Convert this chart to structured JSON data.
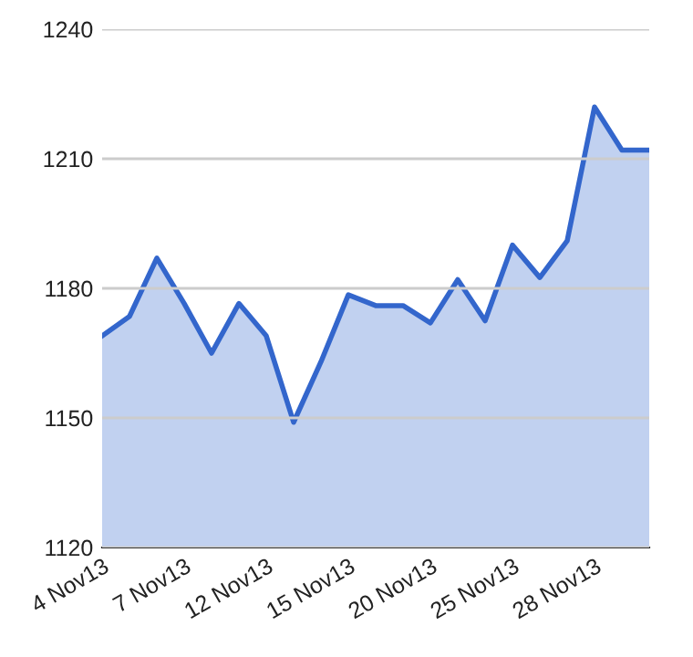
{
  "chart_data": {
    "type": "area",
    "categories": [
      "4 Nov13",
      null,
      null,
      "7 Nov13",
      null,
      null,
      "12 Nov13",
      null,
      null,
      "15 Nov13",
      null,
      null,
      "20 Nov13",
      null,
      null,
      "25 Nov13",
      null,
      null,
      "28 Nov13",
      null,
      null
    ],
    "series": [
      {
        "color": "#3366cc",
        "values": [
          1169,
          1173.5,
          1187,
          1176.5,
          1165,
          1176.5,
          1169,
          1149,
          1163,
          1178.5,
          1176,
          1176,
          1172,
          1182,
          1172.5,
          1190,
          1182.5,
          1191,
          1222,
          1212,
          1212
        ]
      }
    ],
    "ylim": [
      1120,
      1240
    ],
    "yticks": [
      1120,
      1150,
      1180,
      1210,
      1240
    ],
    "grid": "y",
    "legend": false
  }
}
